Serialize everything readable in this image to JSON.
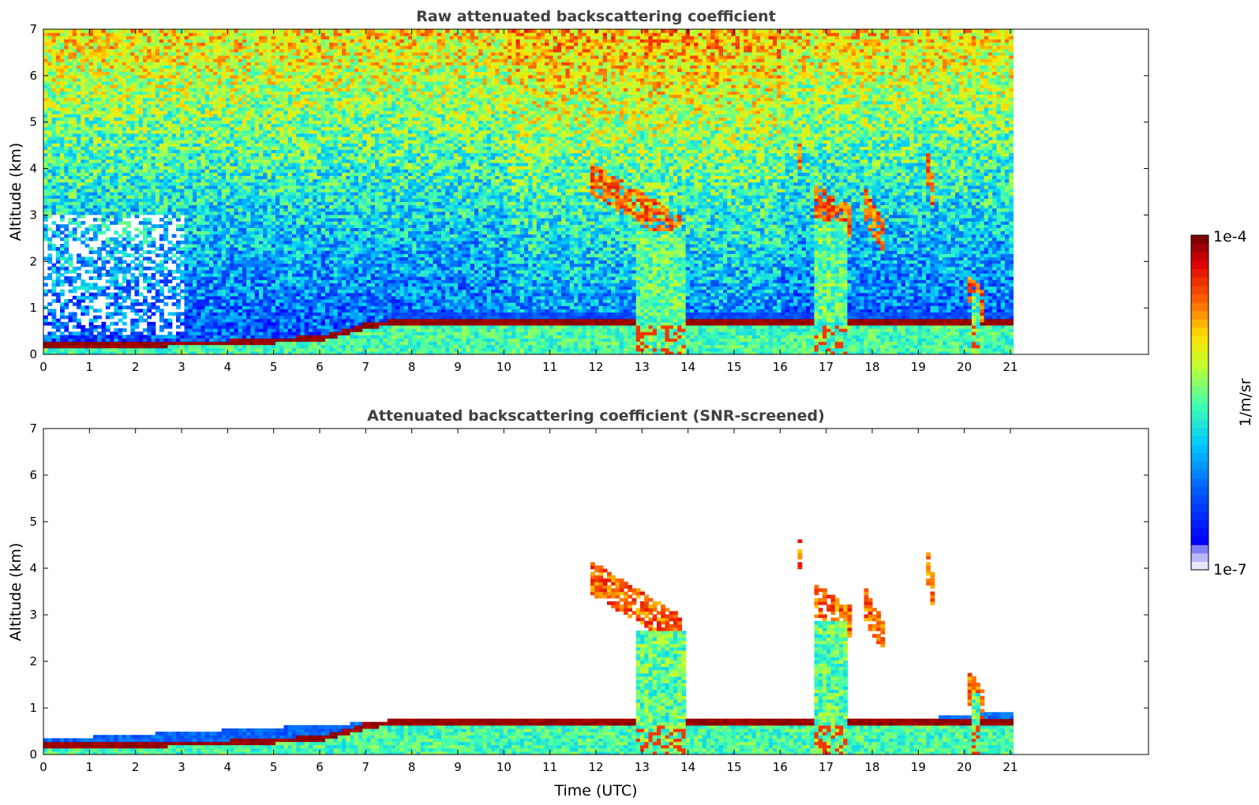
{
  "chart_data": [
    {
      "type": "heatmap",
      "title": "Raw attenuated backscattering coefficient",
      "ylabel": "Altitude (km)",
      "xlabel": "",
      "x_ticks": [
        "0",
        "1",
        "2",
        "3",
        "4",
        "5",
        "6",
        "7",
        "8",
        "9",
        "10",
        "11",
        "12",
        "13",
        "14",
        "15",
        "16",
        "17",
        "18",
        "19",
        "20",
        "21"
      ],
      "y_ticks": [
        "0",
        "1",
        "2",
        "3",
        "4",
        "5",
        "6",
        "7"
      ],
      "xlim": [
        0,
        24
      ],
      "ylim": [
        0,
        7
      ],
      "data_extent_x": [
        0,
        21
      ],
      "scale": "log",
      "clim": [
        1e-07,
        0.0001
      ],
      "colormap": "jet",
      "features": {
        "boundary_layer_top_km": [
          [
            0,
            0.22
          ],
          [
            1,
            0.22
          ],
          [
            2,
            0.22
          ],
          [
            3,
            0.28
          ],
          [
            4,
            0.28
          ],
          [
            5,
            0.33
          ],
          [
            6,
            0.38
          ],
          [
            7,
            0.65
          ],
          [
            7.8,
            0.75
          ]
        ],
        "cloud_segments": [
          {
            "x": [
              11.8,
              13.8
            ],
            "y": [
              2.6,
              3.8
            ]
          },
          {
            "x": [
              16.3,
              16.4
            ],
            "y": [
              4.2,
              4.4
            ]
          },
          {
            "x": [
              16.7,
              17.5
            ],
            "y": [
              2.8,
              3.3
            ]
          },
          {
            "x": [
              17.8,
              18.2
            ],
            "y": [
              2.5,
              3.2
            ]
          },
          {
            "x": [
              19.1,
              19.3
            ],
            "y": [
              3.4,
              4.2
            ]
          },
          {
            "x": [
              20.0,
              20.4
            ],
            "y": [
              0.9,
              1.5
            ]
          }
        ],
        "precipitation_columns": [
          {
            "x": [
              12.8,
              13.9
            ],
            "y": [
              0,
              2.6
            ]
          },
          {
            "x": [
              16.7,
              17.4
            ],
            "y": [
              0,
              2.8
            ]
          },
          {
            "x": [
              20.1,
              20.3
            ],
            "y": [
              0,
              1.3
            ]
          }
        ]
      }
    },
    {
      "type": "heatmap",
      "title": "Attenuated backscattering coefficient (SNR-screened)",
      "ylabel": "Altitude (km)",
      "xlabel": "Time (UTC)",
      "x_ticks": [
        "0",
        "1",
        "2",
        "3",
        "4",
        "5",
        "6",
        "7",
        "8",
        "9",
        "10",
        "11",
        "12",
        "13",
        "14",
        "15",
        "16",
        "17",
        "18",
        "19",
        "20",
        "21"
      ],
      "y_ticks": [
        "0",
        "1",
        "2",
        "3",
        "4",
        "5",
        "6",
        "7"
      ],
      "xlim": [
        0,
        24
      ],
      "ylim": [
        0,
        7
      ],
      "data_extent_x": [
        0,
        21
      ],
      "scale": "log",
      "clim": [
        1e-07,
        0.0001
      ],
      "colormap": "jet",
      "features": {
        "boundary_layer_top_km": [
          [
            0,
            0.22
          ],
          [
            1,
            0.22
          ],
          [
            2,
            0.22
          ],
          [
            3,
            0.28
          ],
          [
            4,
            0.28
          ],
          [
            5,
            0.33
          ],
          [
            6,
            0.38
          ],
          [
            7,
            0.65
          ],
          [
            7.8,
            0.75
          ]
        ],
        "screened_background_top_km": [
          [
            0,
            0.3
          ],
          [
            8,
            0.7
          ],
          [
            12.7,
            0.5
          ],
          [
            16,
            0.5
          ],
          [
            21,
            0.9
          ]
        ]
      }
    }
  ],
  "colorbar": {
    "max_label": "1e-4",
    "min_label": "1e-7",
    "unit_label": "1/m/sr"
  }
}
